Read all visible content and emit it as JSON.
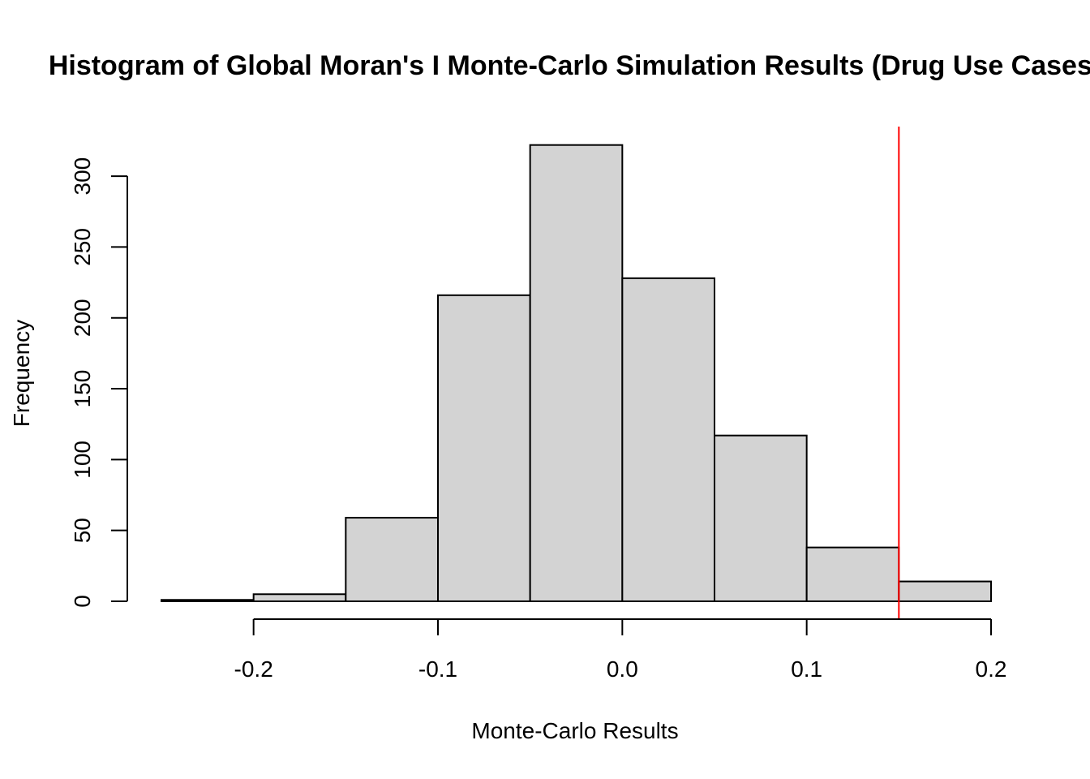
{
  "chart_data": {
    "type": "bar",
    "title": "Histogram of Global Moran's I Monte-Carlo Simulation Results (Drug Use Cases)",
    "xlabel": "Monte-Carlo Results",
    "ylabel": "Frequency",
    "bin_edges": [
      -0.25,
      -0.2,
      -0.15,
      -0.1,
      -0.05,
      0.0,
      0.05,
      0.1,
      0.15,
      0.2
    ],
    "values": [
      1,
      5,
      59,
      216,
      322,
      228,
      117,
      38,
      14
    ],
    "x_ticks": [
      -0.2,
      -0.1,
      0.0,
      0.1,
      0.2
    ],
    "x_tick_labels": [
      "-0.2",
      "-0.1",
      "0.0",
      "0.1",
      "0.2"
    ],
    "y_ticks": [
      0,
      50,
      100,
      150,
      200,
      250,
      300
    ],
    "y_tick_labels": [
      "0",
      "50",
      "100",
      "150",
      "200",
      "250",
      "300"
    ],
    "xlim": [
      -0.25,
      0.2
    ],
    "ylim": [
      0,
      335
    ],
    "reference_line": {
      "x": 0.15,
      "color": "#ff0000"
    },
    "bar_color": "#d3d3d3",
    "grid": false
  }
}
